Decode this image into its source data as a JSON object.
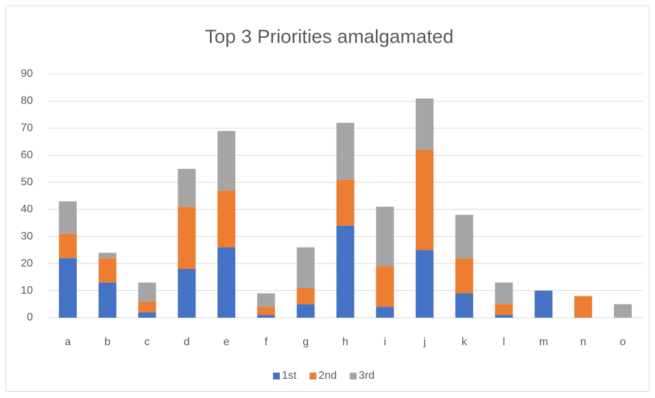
{
  "chart_data": {
    "type": "bar",
    "stacked": true,
    "title": "Top 3 Priorities amalgamated",
    "categories": [
      "a",
      "b",
      "c",
      "d",
      "e",
      "f",
      "g",
      "h",
      "i",
      "j",
      "k",
      "l",
      "m",
      "n",
      "o"
    ],
    "series": [
      {
        "name": "1st",
        "color": "#4472c4",
        "values": [
          22,
          13,
          2,
          18,
          26,
          1,
          5,
          34,
          4,
          25,
          9,
          1,
          10,
          0,
          0
        ]
      },
      {
        "name": "2nd",
        "color": "#ed7d31",
        "values": [
          9,
          9,
          4,
          23,
          21,
          3,
          6,
          17,
          15,
          37,
          13,
          4,
          0,
          8,
          0
        ]
      },
      {
        "name": "3rd",
        "color": "#a5a5a5",
        "values": [
          12,
          2,
          7,
          14,
          22,
          5,
          15,
          21,
          22,
          19,
          16,
          8,
          0,
          0,
          5
        ]
      }
    ],
    "ylim": [
      0,
      90
    ],
    "yticks": [
      0,
      10,
      20,
      30,
      40,
      50,
      60,
      70,
      80,
      90
    ],
    "grid": true,
    "legend": "bottom"
  }
}
